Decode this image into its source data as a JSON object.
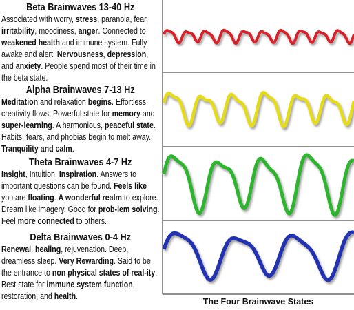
{
  "sections": [
    {
      "title": "Beta Brainwaves 13-40 Hz",
      "description": [
        {
          "text": "Associated with worry, ",
          "bold": false
        },
        {
          "text": "stress",
          "bold": true
        },
        {
          "text": ", paranoia, fear, ",
          "bold": false
        },
        {
          "text": "irritability",
          "bold": true
        },
        {
          "text": ", moodiness, ",
          "bold": false
        },
        {
          "text": "anger",
          "bold": true
        },
        {
          "text": ". Connected to ",
          "bold": false
        },
        {
          "text": "weakened health",
          "bold": true
        },
        {
          "text": " and immune system. Fully awake and alert. ",
          "bold": false
        },
        {
          "text": "Nervousness",
          "bold": true
        },
        {
          "text": ", ",
          "bold": false
        },
        {
          "text": "depression",
          "bold": true
        },
        {
          "text": ", and ",
          "bold": false
        },
        {
          "text": "anxiety",
          "bold": true
        },
        {
          "text": ". People spend most of their time in the beta state.",
          "bold": false
        }
      ]
    },
    {
      "title": "Alpha Brainwaves 7-13 Hz",
      "description": [
        {
          "text": "Meditation",
          "bold": true
        },
        {
          "text": " and relaxation ",
          "bold": false
        },
        {
          "text": "begins",
          "bold": true
        },
        {
          "text": ". Effortless creativity flows. Powerful state for ",
          "bold": false
        },
        {
          "text": "memory",
          "bold": true
        },
        {
          "text": " and ",
          "bold": false
        },
        {
          "text": "super-learning",
          "bold": true
        },
        {
          "text": ". A harmonious, ",
          "bold": false
        },
        {
          "text": "peaceful state",
          "bold": true
        },
        {
          "text": ". Habits, fears, and phobias begin to melt away. ",
          "bold": false
        },
        {
          "text": "Tranquility and calm",
          "bold": true
        },
        {
          "text": ".",
          "bold": false
        }
      ]
    },
    {
      "title": "Theta Brainwaves 4-7 Hz",
      "description": [
        {
          "text": "Insight",
          "bold": true
        },
        {
          "text": ", Intuition, ",
          "bold": false
        },
        {
          "text": "Inspiration",
          "bold": true
        },
        {
          "text": ". Answers to important questions can be found. ",
          "bold": false
        },
        {
          "text": "Feels like",
          "bold": true
        },
        {
          "text": " you are ",
          "bold": false
        },
        {
          "text": "floating",
          "bold": true
        },
        {
          "text": ".  ",
          "bold": false
        },
        {
          "text": "A wonderful realm",
          "bold": true
        },
        {
          "text": " to explore. Dream like imagery. Good for ",
          "bold": false
        },
        {
          "text": "prob-lem solving",
          "bold": true
        },
        {
          "text": ". Feel ",
          "bold": false
        },
        {
          "text": "more connected",
          "bold": true
        },
        {
          "text": " to others.",
          "bold": false
        }
      ]
    },
    {
      "title": "Delta Brainwaves 0-4 Hz",
      "description": [
        {
          "text": "Renewal",
          "bold": true
        },
        {
          "text": ", ",
          "bold": false
        },
        {
          "text": "healing",
          "bold": true
        },
        {
          "text": ", rejuvenation. Deep, dreamless sleep. ",
          "bold": false
        },
        {
          "text": "Very Rewarding",
          "bold": true
        },
        {
          "text": ". Said to be the entrance to ",
          "bold": false
        },
        {
          "text": "non physical states of real-ity",
          "bold": true
        },
        {
          "text": ". Best state for ",
          "bold": false
        },
        {
          "text": "immune system function",
          "bold": true
        },
        {
          "text": ", restoration, and ",
          "bold": false
        },
        {
          "text": "health",
          "bold": true
        },
        {
          "text": ".",
          "bold": false
        }
      ]
    }
  ],
  "caption": "The Four Brainwave States"
}
